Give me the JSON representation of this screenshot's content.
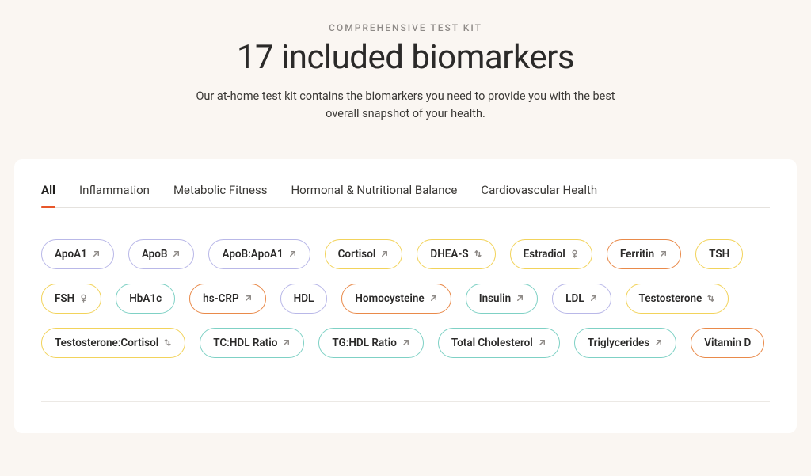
{
  "hero": {
    "eyebrow": "COMPREHENSIVE TEST KIT",
    "headline": "17 included biomarkers",
    "subhead": "Our at-home test kit contains the biomarkers you need to provide you with the best overall snapshot of your health."
  },
  "palette": {
    "lavender": "#b9b8e8",
    "teal": "#7fd1c5",
    "orange": "#e98a4a",
    "yellow": "#f2d35b"
  },
  "tabs": [
    {
      "label": "All",
      "active": true
    },
    {
      "label": "Inflammation",
      "active": false
    },
    {
      "label": "Metabolic Fitness",
      "active": false
    },
    {
      "label": "Hormonal & Nutritional Balance",
      "active": false
    },
    {
      "label": "Cardiovascular Health",
      "active": false
    }
  ],
  "biomarkers": [
    {
      "label": "ApoA1",
      "color": "lavender",
      "icon": "arrow"
    },
    {
      "label": "ApoB",
      "color": "lavender",
      "icon": "arrow"
    },
    {
      "label": "ApoB:ApoA1",
      "color": "lavender",
      "icon": "arrow"
    },
    {
      "label": "Cortisol",
      "color": "yellow",
      "icon": "arrow"
    },
    {
      "label": "DHEA-S",
      "color": "yellow",
      "icon": "updown"
    },
    {
      "label": "Estradiol",
      "color": "yellow",
      "icon": "female"
    },
    {
      "label": "Ferritin",
      "color": "orange",
      "icon": "arrow"
    },
    {
      "label": "TSH",
      "color": "yellow",
      "icon": "none"
    },
    {
      "label": "FSH",
      "color": "yellow",
      "icon": "female"
    },
    {
      "label": "HbA1c",
      "color": "teal",
      "icon": "none"
    },
    {
      "label": "hs-CRP",
      "color": "orange",
      "icon": "arrow"
    },
    {
      "label": "HDL",
      "color": "lavender",
      "icon": "none"
    },
    {
      "label": "Homocysteine",
      "color": "orange",
      "icon": "arrow"
    },
    {
      "label": "Insulin",
      "color": "teal",
      "icon": "arrow"
    },
    {
      "label": "LDL",
      "color": "lavender",
      "icon": "arrow"
    },
    {
      "label": "Testosterone",
      "color": "yellow",
      "icon": "updown"
    },
    {
      "label": "Testosterone:Cortisol",
      "color": "yellow",
      "icon": "updown"
    },
    {
      "label": "TC:HDL Ratio",
      "color": "teal",
      "icon": "arrow"
    },
    {
      "label": "TG:HDL Ratio",
      "color": "teal",
      "icon": "arrow"
    },
    {
      "label": "Total Cholesterol",
      "color": "teal",
      "icon": "arrow"
    },
    {
      "label": "Triglycerides",
      "color": "teal",
      "icon": "arrow"
    },
    {
      "label": "Vitamin D",
      "color": "orange",
      "icon": "none"
    }
  ]
}
